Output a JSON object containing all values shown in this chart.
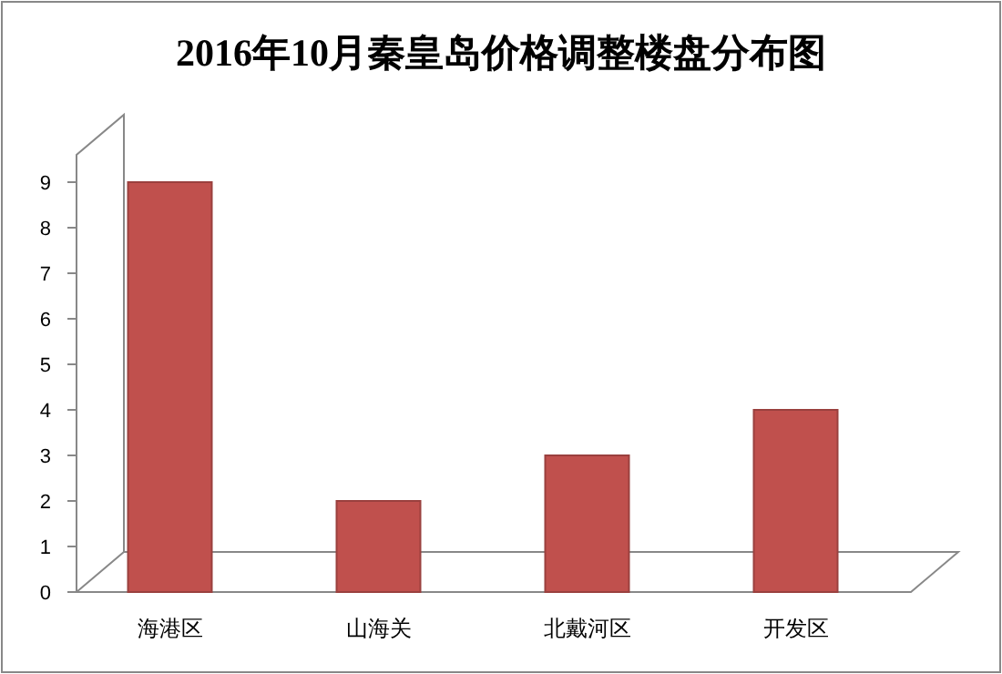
{
  "chart_data": {
    "type": "bar",
    "title": "2016年10月秦皇岛价格调整楼盘分布图",
    "categories": [
      "海港区",
      "山海关",
      "北戴河区",
      "开发区"
    ],
    "values": [
      9,
      2,
      3,
      4
    ],
    "color": "#c0504d",
    "ylim": [
      0,
      9.6
    ],
    "yticks": [
      0,
      1,
      2,
      3,
      4,
      5,
      6,
      7,
      8,
      9
    ],
    "grid": false
  }
}
